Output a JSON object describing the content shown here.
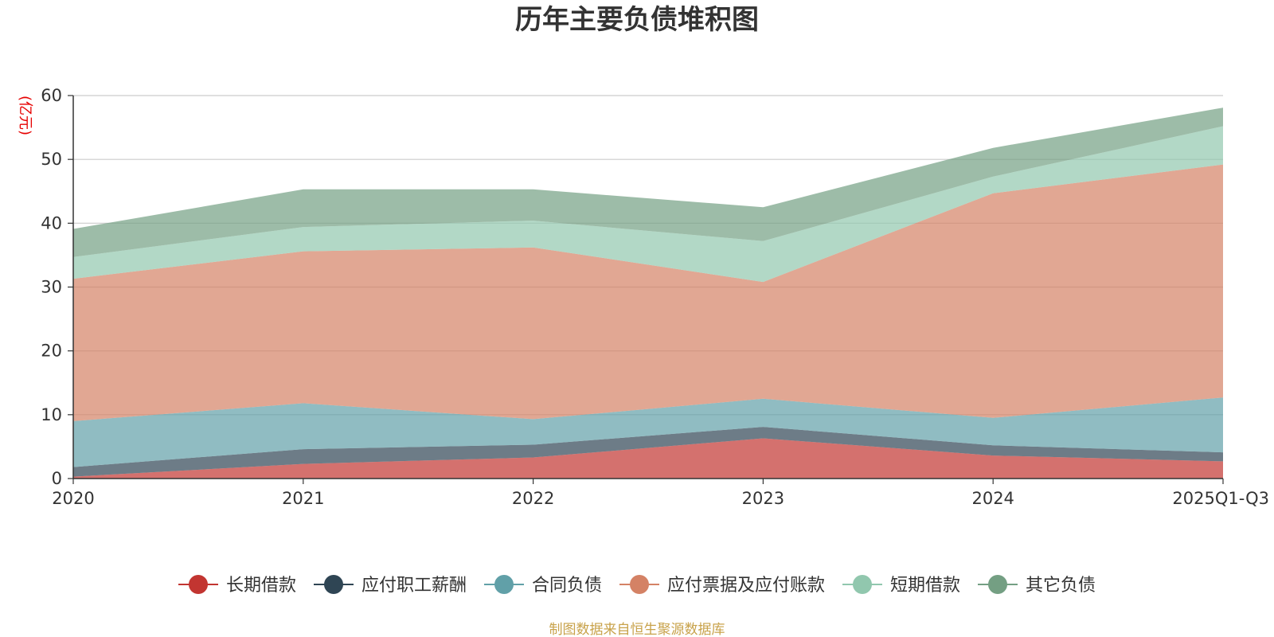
{
  "chart_data": {
    "type": "area",
    "stacked": true,
    "title": "历年主要负债堆积图",
    "unit_label": "(亿元)",
    "source": "制图数据来自恒生聚源数据库",
    "categories": [
      "2020",
      "2021",
      "2022",
      "2023",
      "2024",
      "2025Q1-Q3"
    ],
    "ylim": [
      0,
      60
    ],
    "yticks": [
      0,
      10,
      20,
      30,
      40,
      50,
      60
    ],
    "grid": true,
    "legend_position": "bottom",
    "series": [
      {
        "name": "长期借款",
        "color": "#c23531",
        "values": [
          0.3,
          2.3,
          3.3,
          6.3,
          3.6,
          2.7
        ]
      },
      {
        "name": "应付职工薪酬",
        "color": "#2f4554",
        "values": [
          1.5,
          2.3,
          2.0,
          1.8,
          1.6,
          1.4
        ]
      },
      {
        "name": "合同负债",
        "color": "#61a0a8",
        "values": [
          7.2,
          7.2,
          4.0,
          4.4,
          4.3,
          8.6
        ]
      },
      {
        "name": "应付票据及应付账款",
        "color": "#d48265",
        "values": [
          22.3,
          23.8,
          26.9,
          18.3,
          35.2,
          36.5
        ]
      },
      {
        "name": "短期借款",
        "color": "#91c7ae",
        "values": [
          3.4,
          3.8,
          4.2,
          6.4,
          2.6,
          6.0
        ]
      },
      {
        "name": "其它负债",
        "color": "#749f83",
        "values": [
          4.4,
          5.9,
          4.9,
          5.3,
          4.5,
          2.9
        ]
      }
    ]
  }
}
